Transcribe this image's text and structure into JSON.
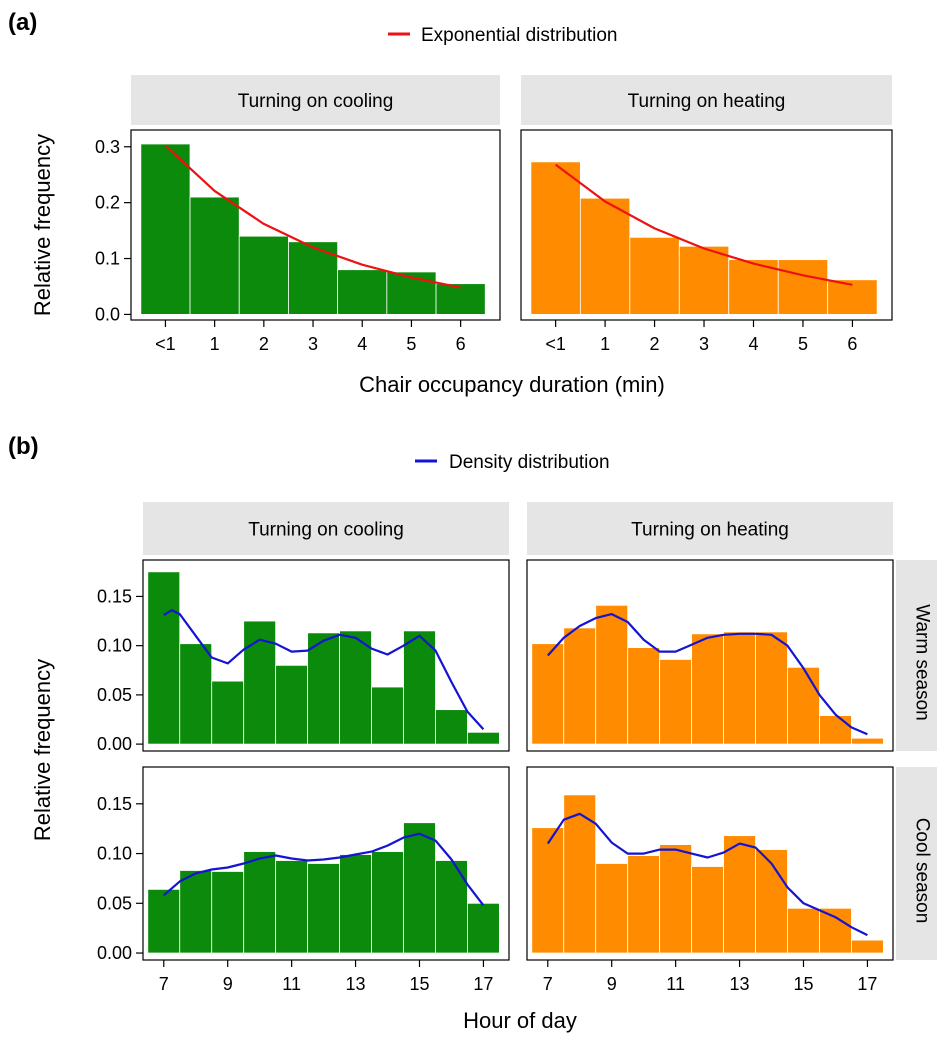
{
  "panel_labels": {
    "a": "(a)",
    "b": "(b)"
  },
  "legend_a": {
    "label": "Exponential distribution",
    "color": "#ee1111"
  },
  "legend_b": {
    "label": "Density distribution",
    "color": "#1414d2"
  },
  "colors": {
    "cooling": "#0b8a0b",
    "heating": "#ff8c00",
    "strip_bg": "#e5e5e5"
  },
  "part_a": {
    "ylabel": "Relative frequency",
    "xlabel": "Chair occupancy duration (min)"
  },
  "part_b": {
    "ylabel": "Relative frequency",
    "xlabel": "Hour of day"
  },
  "chart_data": [
    {
      "type": "bar",
      "title": "Turning on cooling",
      "group": "a",
      "categories": [
        "<1",
        "1",
        "2",
        "3",
        "4",
        "5",
        "6"
      ],
      "values": [
        0.305,
        0.21,
        0.14,
        0.13,
        0.08,
        0.076,
        0.055
      ],
      "ylim": [
        -0.01,
        0.33
      ],
      "yticks": [
        "0.0",
        "0.1",
        "0.2",
        "0.3"
      ],
      "color": "cooling",
      "line": {
        "name": "Exponential distribution",
        "x": [
          0,
          1,
          2,
          3,
          4,
          5,
          6
        ],
        "y": [
          0.302,
          0.221,
          0.162,
          0.12,
          0.089,
          0.066,
          0.048
        ]
      }
    },
    {
      "type": "bar",
      "title": "Turning on heating",
      "group": "a",
      "categories": [
        "<1",
        "1",
        "2",
        "3",
        "4",
        "5",
        "6"
      ],
      "values": [
        0.273,
        0.208,
        0.138,
        0.122,
        0.098,
        0.098,
        0.062
      ],
      "ylim": [
        -0.01,
        0.33
      ],
      "yticks": [
        "0.0",
        "0.1",
        "0.2",
        "0.3"
      ],
      "color": "heating",
      "line": {
        "name": "Exponential distribution",
        "x": [
          0,
          1,
          2,
          3,
          4,
          5,
          6
        ],
        "y": [
          0.268,
          0.202,
          0.154,
          0.118,
          0.091,
          0.07,
          0.053
        ]
      }
    },
    {
      "type": "bar",
      "title": "Turning on cooling",
      "row": "Warm season",
      "group": "b",
      "x": [
        7,
        8,
        9,
        10,
        11,
        12,
        13,
        14,
        15,
        16,
        17
      ],
      "values": [
        0.175,
        0.102,
        0.064,
        0.125,
        0.08,
        0.113,
        0.115,
        0.058,
        0.115,
        0.035,
        0.012
      ],
      "ylim": [
        -0.007,
        0.187
      ],
      "xlim": [
        6.35,
        17.8
      ],
      "yticks": [
        "0.00",
        "0.05",
        "0.10",
        "0.15"
      ],
      "xticks": [
        "7",
        "9",
        "11",
        "13",
        "15",
        "17"
      ],
      "color": "cooling",
      "line": {
        "name": "Density distribution",
        "x": [
          7,
          7.25,
          7.5,
          8,
          8.5,
          9,
          9.5,
          10,
          10.5,
          11,
          11.5,
          12,
          12.5,
          13,
          13.5,
          14,
          14.5,
          15,
          15.5,
          16,
          16.5,
          17
        ],
        "y": [
          0.131,
          0.136,
          0.132,
          0.11,
          0.088,
          0.082,
          0.096,
          0.106,
          0.102,
          0.094,
          0.095,
          0.105,
          0.111,
          0.108,
          0.097,
          0.091,
          0.1,
          0.11,
          0.095,
          0.063,
          0.033,
          0.015
        ]
      }
    },
    {
      "type": "bar",
      "title": "Turning on heating",
      "row": "Warm season",
      "group": "b",
      "x": [
        7,
        8,
        9,
        10,
        11,
        12,
        13,
        14,
        15,
        16,
        17
      ],
      "values": [
        0.102,
        0.118,
        0.141,
        0.098,
        0.086,
        0.112,
        0.114,
        0.114,
        0.078,
        0.029,
        0.006
      ],
      "ylim": [
        -0.007,
        0.187
      ],
      "xlim": [
        6.35,
        17.8
      ],
      "yticks": [
        "0.00",
        "0.05",
        "0.10",
        "0.15"
      ],
      "xticks": [
        "7",
        "9",
        "11",
        "13",
        "15",
        "17"
      ],
      "color": "heating",
      "line": {
        "name": "Density distribution",
        "x": [
          7,
          7.5,
          8,
          8.5,
          9,
          9.5,
          10,
          10.5,
          11,
          11.5,
          12,
          12.5,
          13,
          13.5,
          14,
          14.5,
          15,
          15.5,
          16,
          16.5,
          17
        ],
        "y": [
          0.09,
          0.108,
          0.12,
          0.128,
          0.132,
          0.124,
          0.106,
          0.094,
          0.094,
          0.101,
          0.108,
          0.111,
          0.112,
          0.112,
          0.111,
          0.1,
          0.077,
          0.05,
          0.03,
          0.017,
          0.01
        ]
      }
    },
    {
      "type": "bar",
      "title": "Turning on cooling",
      "row": "Cool season",
      "group": "b",
      "x": [
        7,
        8,
        9,
        10,
        11,
        12,
        13,
        14,
        15,
        16,
        17
      ],
      "values": [
        0.064,
        0.083,
        0.082,
        0.102,
        0.093,
        0.09,
        0.099,
        0.102,
        0.131,
        0.093,
        0.05
      ],
      "ylim": [
        -0.007,
        0.187
      ],
      "xlim": [
        6.35,
        17.8
      ],
      "yticks": [
        "0.00",
        "0.05",
        "0.10",
        "0.15"
      ],
      "xticks": [
        "7",
        "9",
        "11",
        "13",
        "15",
        "17"
      ],
      "color": "cooling",
      "line": {
        "name": "Density distribution",
        "x": [
          7,
          7.5,
          8,
          8.5,
          9,
          9.5,
          10,
          10.5,
          11,
          11.5,
          12,
          12.5,
          13,
          13.5,
          14,
          14.5,
          15,
          15.5,
          16,
          16.5,
          17
        ],
        "y": [
          0.058,
          0.072,
          0.08,
          0.084,
          0.086,
          0.09,
          0.095,
          0.098,
          0.095,
          0.093,
          0.094,
          0.096,
          0.099,
          0.102,
          0.108,
          0.116,
          0.12,
          0.113,
          0.094,
          0.069,
          0.048
        ]
      }
    },
    {
      "type": "bar",
      "title": "Turning on heating",
      "row": "Cool season",
      "group": "b",
      "x": [
        7,
        8,
        9,
        10,
        11,
        12,
        13,
        14,
        15,
        16,
        17
      ],
      "values": [
        0.126,
        0.159,
        0.09,
        0.098,
        0.109,
        0.087,
        0.118,
        0.104,
        0.045,
        0.045,
        0.013
      ],
      "ylim": [
        -0.007,
        0.187
      ],
      "xlim": [
        6.35,
        17.8
      ],
      "yticks": [
        "0.00",
        "0.05",
        "0.10",
        "0.15"
      ],
      "xticks": [
        "7",
        "9",
        "11",
        "13",
        "15",
        "17"
      ],
      "color": "heating",
      "line": {
        "name": "Density distribution",
        "x": [
          7,
          7.5,
          8,
          8.5,
          9,
          9.5,
          10,
          10.5,
          11,
          11.5,
          12,
          12.5,
          13,
          13.5,
          14,
          14.5,
          15,
          15.5,
          16,
          16.5,
          17
        ],
        "y": [
          0.11,
          0.134,
          0.14,
          0.13,
          0.111,
          0.1,
          0.1,
          0.104,
          0.104,
          0.1,
          0.096,
          0.101,
          0.11,
          0.106,
          0.09,
          0.066,
          0.05,
          0.043,
          0.036,
          0.026,
          0.018
        ]
      }
    }
  ]
}
